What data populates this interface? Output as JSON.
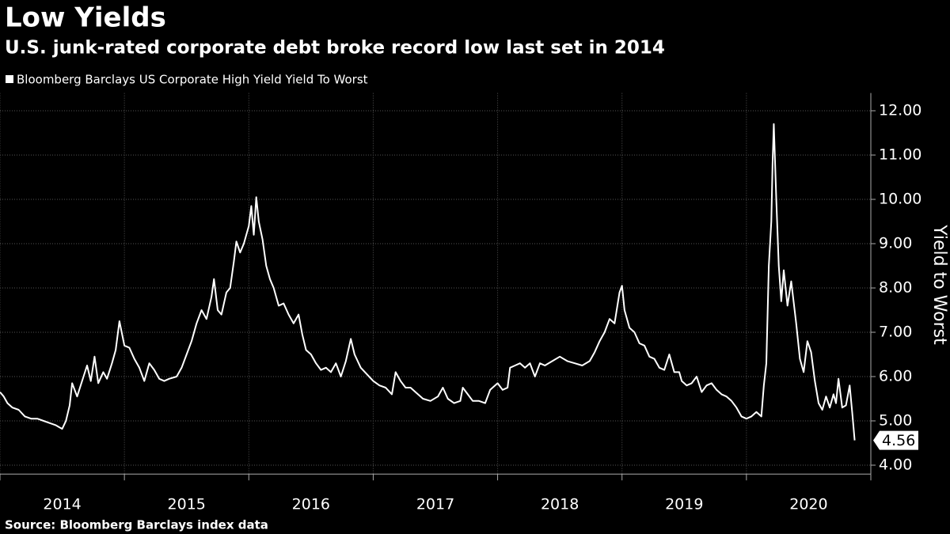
{
  "chart_data": {
    "type": "line",
    "title": "Low Yields",
    "subtitle": "U.S. junk-rated corporate debt broke record low last set in 2014",
    "source": "Source: Bloomberg Barclays index data",
    "ylabel": "Yield to Worst",
    "grid": true,
    "xlim": [
      2014,
      2021
    ],
    "xticks": [
      {
        "value": 2014.5,
        "label": "2014"
      },
      {
        "value": 2015.5,
        "label": "2015"
      },
      {
        "value": 2016.5,
        "label": "2016"
      },
      {
        "value": 2017.5,
        "label": "2017"
      },
      {
        "value": 2018.5,
        "label": "2018"
      },
      {
        "value": 2019.5,
        "label": "2019"
      },
      {
        "value": 2020.5,
        "label": "2020"
      }
    ],
    "xtick_marks": [
      2014,
      2015,
      2016,
      2017,
      2018,
      2019,
      2020,
      2021
    ],
    "ylim": [
      3.8,
      12.4
    ],
    "yticks": [
      {
        "value": 4,
        "label": "4.00"
      },
      {
        "value": 5,
        "label": "5.00"
      },
      {
        "value": 6,
        "label": "6.00"
      },
      {
        "value": 7,
        "label": "7.00"
      },
      {
        "value": 8,
        "label": "8.00"
      },
      {
        "value": 9,
        "label": "9.00"
      },
      {
        "value": 10,
        "label": "10.00"
      },
      {
        "value": 11,
        "label": "11.00"
      },
      {
        "value": 12,
        "label": "12.00"
      }
    ],
    "x": [
      2014.0,
      2014.03,
      2014.06,
      2014.1,
      2014.15,
      2014.2,
      2014.25,
      2014.3,
      2014.35,
      2014.4,
      2014.45,
      2014.48,
      2014.5,
      2014.53,
      2014.56,
      2014.58,
      2014.62,
      2014.66,
      2014.7,
      2014.73,
      2014.76,
      2014.79,
      2014.83,
      2014.86,
      2014.9,
      2014.93,
      2014.96,
      2015.0,
      2015.04,
      2015.08,
      2015.12,
      2015.16,
      2015.2,
      2015.24,
      2015.28,
      2015.32,
      2015.36,
      2015.42,
      2015.46,
      2015.5,
      2015.54,
      2015.58,
      2015.62,
      2015.66,
      2015.7,
      2015.72,
      2015.75,
      2015.78,
      2015.82,
      2015.85,
      2015.88,
      2015.9,
      2015.93,
      2015.96,
      2016.0,
      2016.02,
      2016.04,
      2016.06,
      2016.08,
      2016.11,
      2016.14,
      2016.17,
      2016.2,
      2016.24,
      2016.28,
      2016.32,
      2016.36,
      2016.4,
      2016.43,
      2016.46,
      2016.5,
      2016.54,
      2016.58,
      2016.62,
      2016.66,
      2016.7,
      2016.74,
      2016.78,
      2016.82,
      2016.85,
      2016.9,
      2016.95,
      2017.0,
      2017.05,
      2017.1,
      2017.15,
      2017.18,
      2017.22,
      2017.26,
      2017.3,
      2017.34,
      2017.4,
      2017.46,
      2017.52,
      2017.56,
      2017.6,
      2017.65,
      2017.7,
      2017.72,
      2017.76,
      2017.8,
      2017.85,
      2017.9,
      2017.94,
      2018.0,
      2018.04,
      2018.08,
      2018.1,
      2018.14,
      2018.18,
      2018.22,
      2018.26,
      2018.3,
      2018.34,
      2018.38,
      2018.44,
      2018.5,
      2018.56,
      2018.62,
      2018.68,
      2018.74,
      2018.78,
      2018.82,
      2018.86,
      2018.9,
      2018.94,
      2018.98,
      2019.0,
      2019.02,
      2019.06,
      2019.1,
      2019.14,
      2019.18,
      2019.22,
      2019.26,
      2019.3,
      2019.34,
      2019.38,
      2019.42,
      2019.46,
      2019.48,
      2019.52,
      2019.56,
      2019.6,
      2019.64,
      2019.68,
      2019.72,
      2019.76,
      2019.8,
      2019.84,
      2019.88,
      2019.92,
      2019.96,
      2020.0,
      2020.04,
      2020.08,
      2020.12,
      2020.14,
      2020.16,
      2020.18,
      2020.2,
      2020.21,
      2020.22,
      2020.24,
      2020.26,
      2020.28,
      2020.3,
      2020.33,
      2020.36,
      2020.4,
      2020.43,
      2020.46,
      2020.49,
      2020.52,
      2020.55,
      2020.58,
      2020.61,
      2020.64,
      2020.67,
      2020.7,
      2020.72,
      2020.74,
      2020.77,
      2020.8,
      2020.83,
      2020.85,
      2020.87
    ],
    "series": [
      {
        "name": "Bloomberg Barclays US Corporate High Yield Yield To Worst",
        "color": "#ffffff",
        "values": [
          5.65,
          5.55,
          5.4,
          5.3,
          5.25,
          5.1,
          5.05,
          5.05,
          5.0,
          4.95,
          4.9,
          4.85,
          4.82,
          5.0,
          5.35,
          5.85,
          5.55,
          5.9,
          6.25,
          5.9,
          6.45,
          5.85,
          6.1,
          5.95,
          6.3,
          6.6,
          7.25,
          6.7,
          6.65,
          6.4,
          6.2,
          5.9,
          6.3,
          6.15,
          5.95,
          5.9,
          5.95,
          6.0,
          6.2,
          6.5,
          6.8,
          7.2,
          7.5,
          7.3,
          7.8,
          8.2,
          7.5,
          7.4,
          7.9,
          8.0,
          8.6,
          9.05,
          8.8,
          9.0,
          9.4,
          9.85,
          9.2,
          10.05,
          9.5,
          9.1,
          8.5,
          8.2,
          8.0,
          7.6,
          7.65,
          7.4,
          7.2,
          7.4,
          6.95,
          6.6,
          6.5,
          6.3,
          6.15,
          6.2,
          6.1,
          6.3,
          6.0,
          6.35,
          6.85,
          6.5,
          6.2,
          6.05,
          5.9,
          5.8,
          5.75,
          5.6,
          6.1,
          5.9,
          5.75,
          5.75,
          5.65,
          5.5,
          5.45,
          5.55,
          5.75,
          5.5,
          5.4,
          5.45,
          5.75,
          5.6,
          5.45,
          5.45,
          5.4,
          5.7,
          5.85,
          5.7,
          5.75,
          6.2,
          6.25,
          6.3,
          6.2,
          6.3,
          6.0,
          6.3,
          6.25,
          6.35,
          6.45,
          6.35,
          6.3,
          6.25,
          6.35,
          6.55,
          6.8,
          7.0,
          7.3,
          7.2,
          7.9,
          8.05,
          7.5,
          7.1,
          7.0,
          6.75,
          6.7,
          6.45,
          6.4,
          6.2,
          6.15,
          6.5,
          6.1,
          6.1,
          5.9,
          5.8,
          5.85,
          6.0,
          5.65,
          5.8,
          5.85,
          5.7,
          5.6,
          5.55,
          5.45,
          5.3,
          5.1,
          5.05,
          5.1,
          5.2,
          5.1,
          5.8,
          6.3,
          8.5,
          9.5,
          10.8,
          11.7,
          10.0,
          8.5,
          7.7,
          8.4,
          7.6,
          8.15,
          7.2,
          6.4,
          6.1,
          6.8,
          6.55,
          5.9,
          5.4,
          5.25,
          5.55,
          5.3,
          5.6,
          5.4,
          5.95,
          5.3,
          5.35,
          5.8,
          5.2,
          4.56
        ]
      }
    ]
  }
}
